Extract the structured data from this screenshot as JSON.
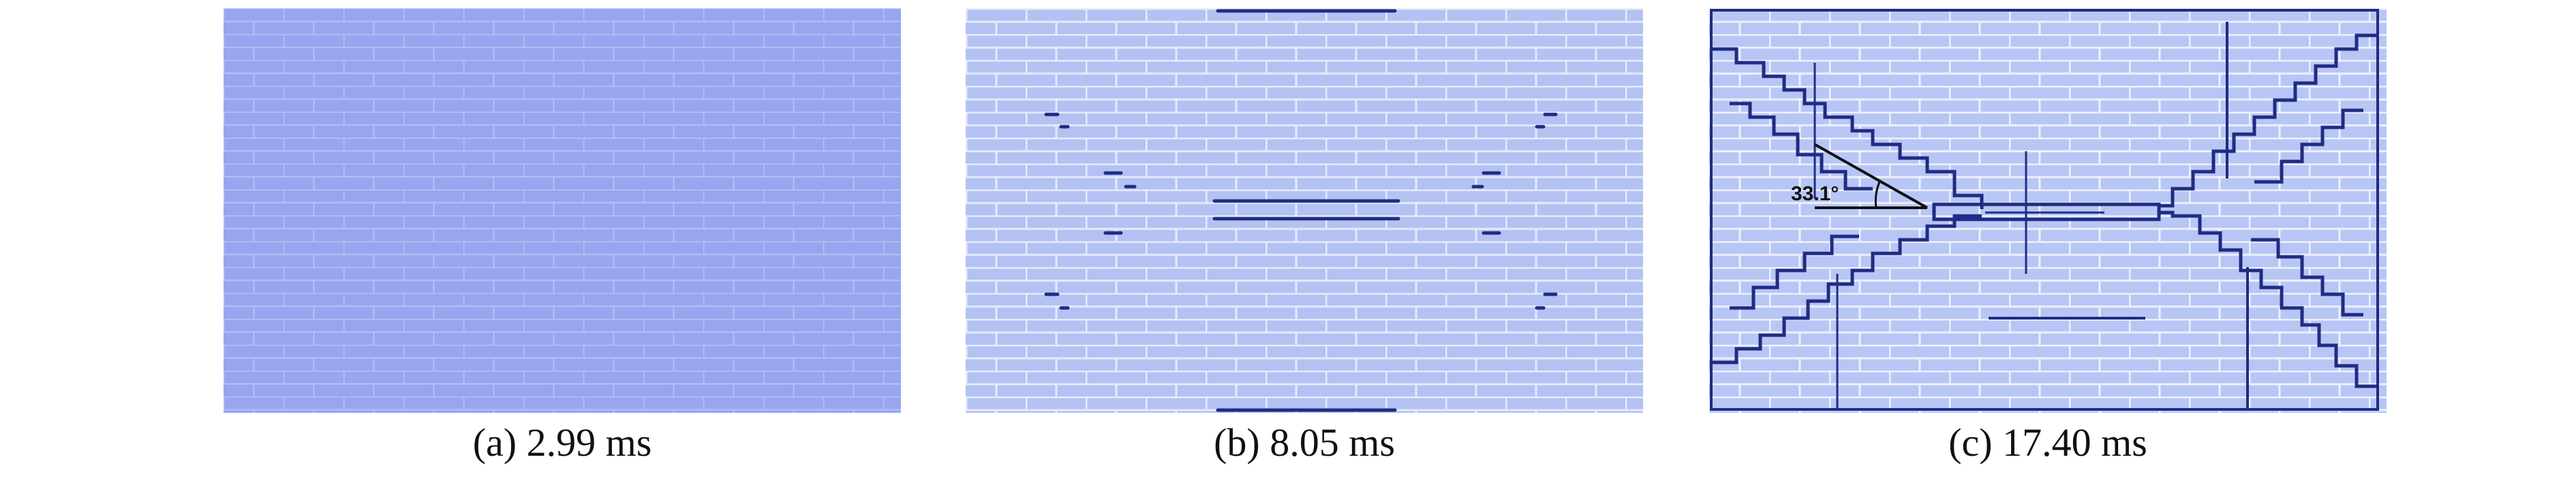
{
  "panels": [
    {
      "caption": "(a) 2.99 ms",
      "bg_color": "#98a6ef",
      "mortar_color": "#b6c2f5"
    },
    {
      "caption": "(b) 8.05 ms",
      "bg_color": "#b3c2f3",
      "mortar_color": "#e6ebfb"
    },
    {
      "caption": "(c) 17.40 ms",
      "bg_color": "#b8c6f5",
      "mortar_color": "#eef1fc",
      "annotation": "33.1°"
    }
  ],
  "crack_color": "#1f2c82"
}
